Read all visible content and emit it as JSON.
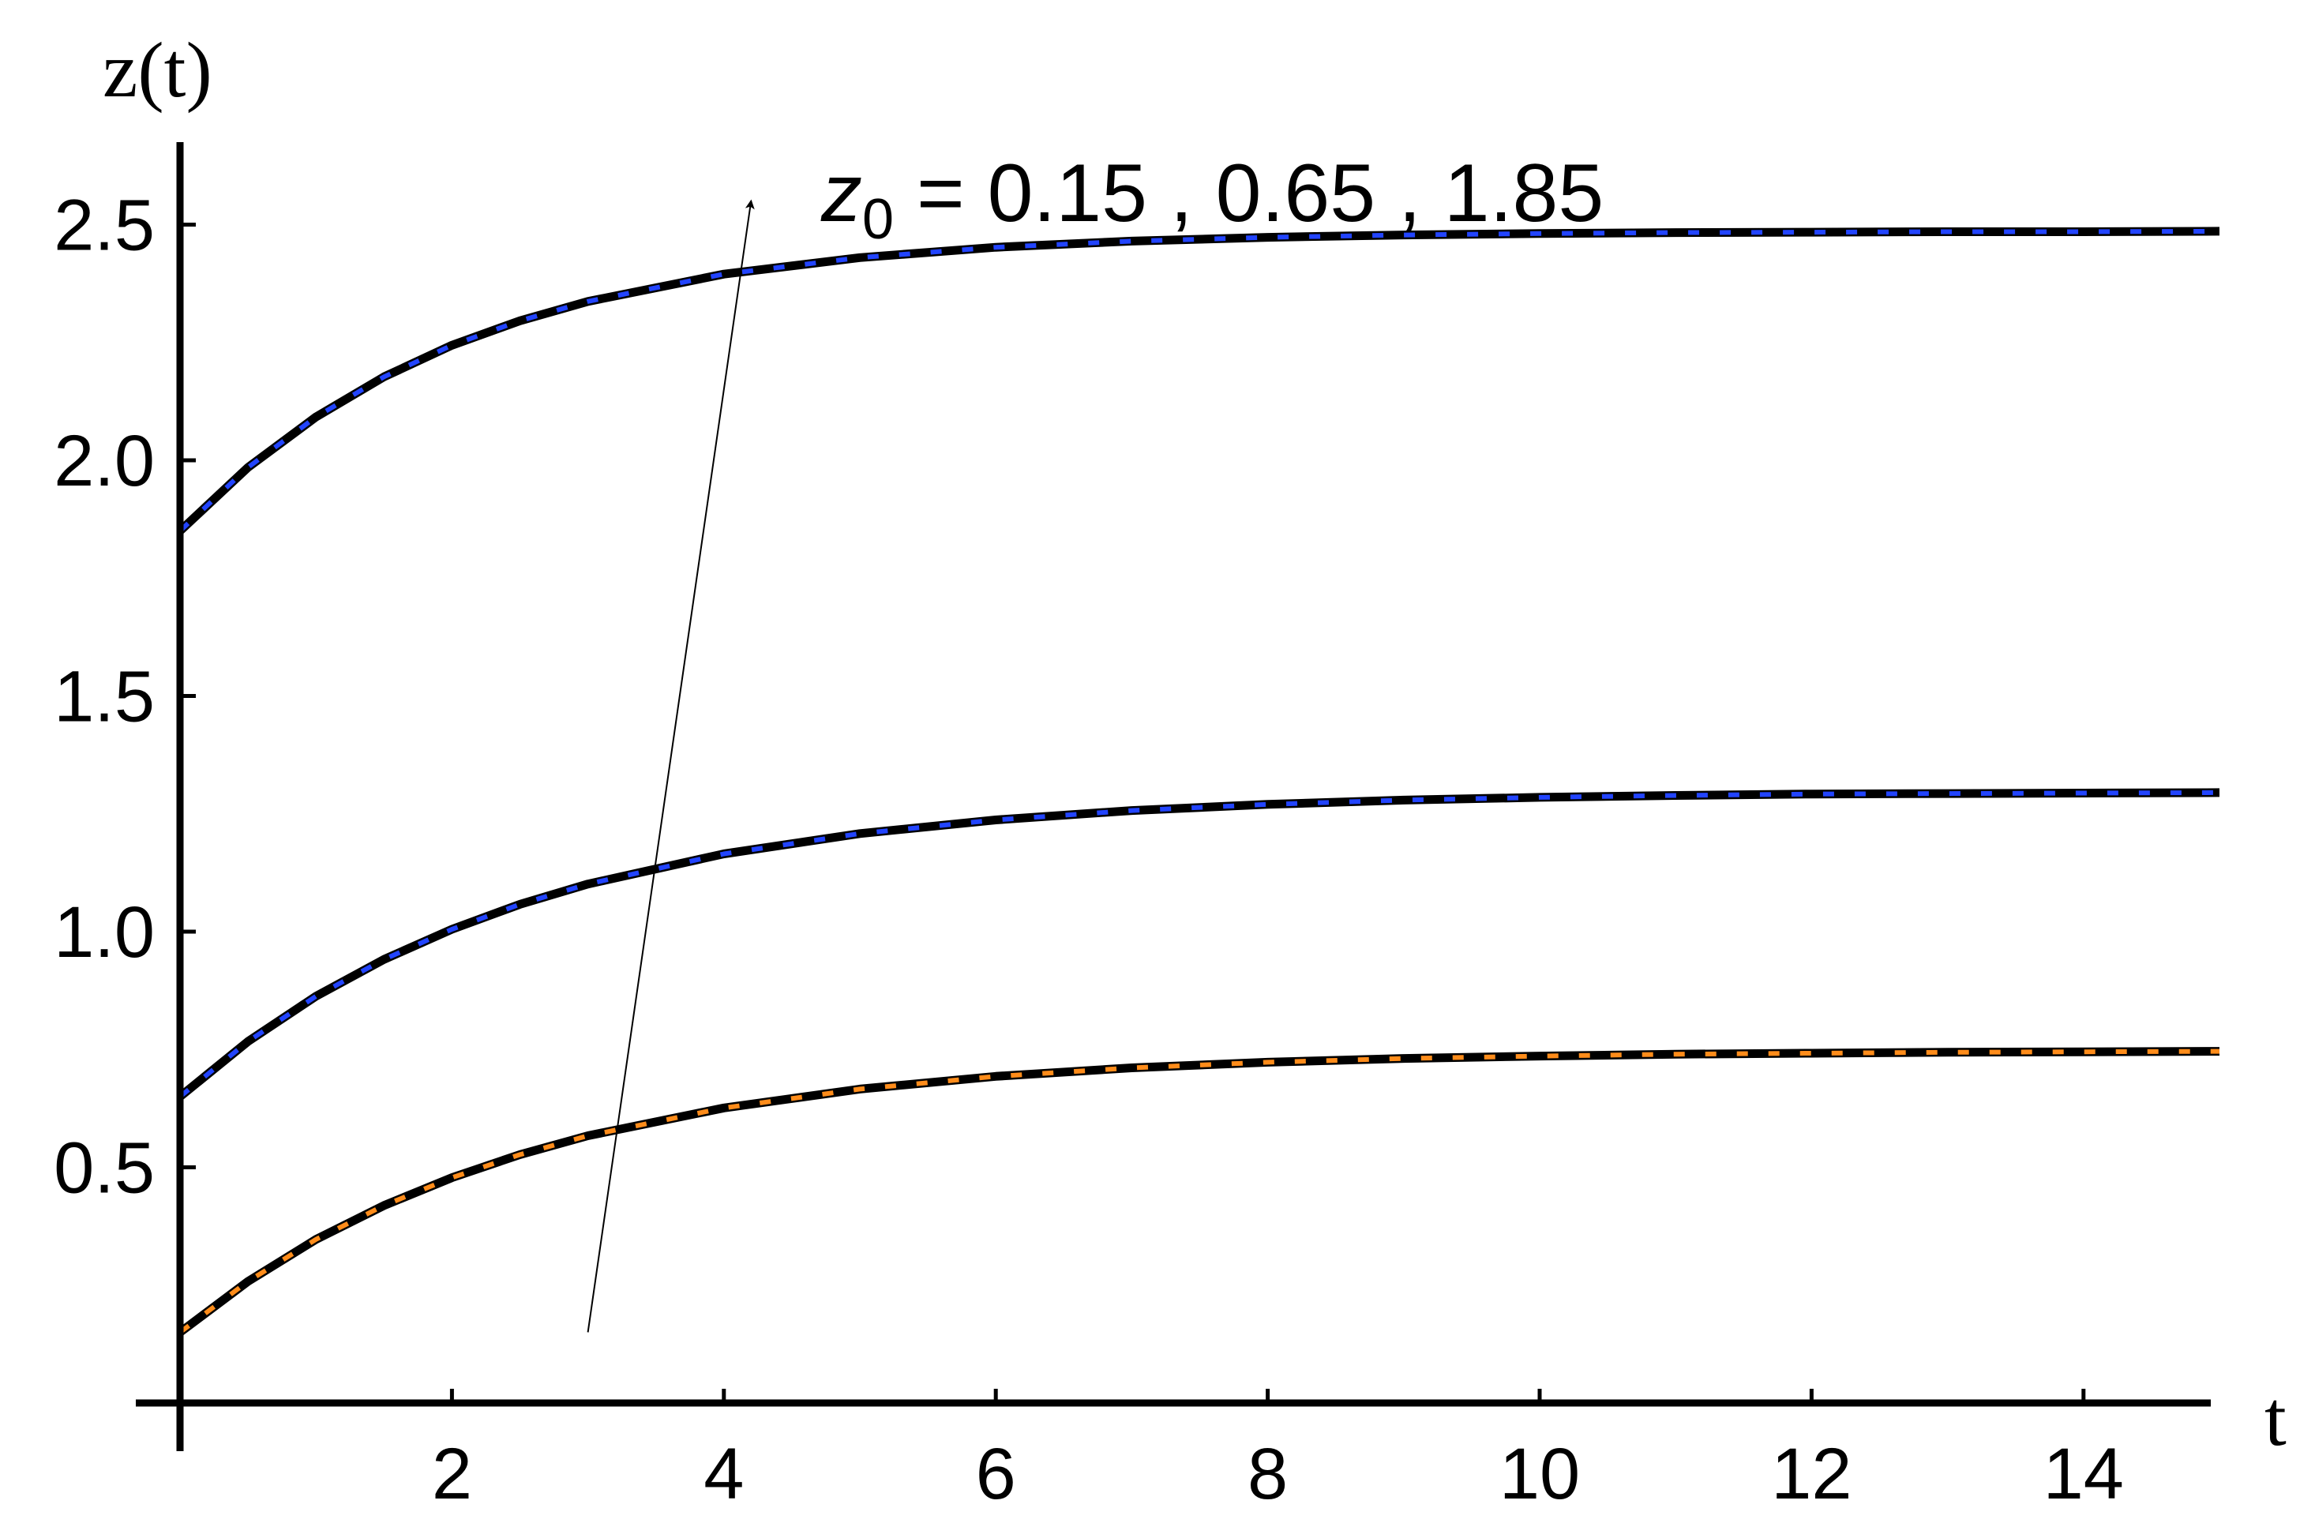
{
  "chart_data": {
    "type": "line",
    "xlabel": "t",
    "ylabel": "z(t)",
    "xlim": [
      0,
      15
    ],
    "ylim": [
      0,
      2.7
    ],
    "xticks": [
      2,
      4,
      6,
      8,
      10,
      12,
      14
    ],
    "yticks": [
      0.5,
      1.0,
      1.5,
      2.0,
      2.5
    ],
    "xtick_labels": [
      "2",
      "4",
      "6",
      "8",
      "10",
      "12",
      "14"
    ],
    "ytick_labels": [
      "0.5",
      "1.0",
      "1.5",
      "2.0",
      "2.5"
    ],
    "grid": false,
    "annotation": {
      "var": "z",
      "sub": "0",
      "text": " = 0.15 , 0.65 , 1.85",
      "arrow_from": [
        3,
        0.15
      ],
      "arrow_to": [
        4.2,
        2.55
      ]
    },
    "series": [
      {
        "z0": 0.15,
        "overlay_color": "#ff8c1a",
        "x": [
          0,
          0.5,
          1,
          1.5,
          2,
          2.5,
          3,
          4,
          5,
          6,
          7,
          8,
          9,
          10,
          11,
          12,
          13,
          14,
          15
        ],
        "y": [
          0.15,
          0.258,
          0.347,
          0.419,
          0.478,
          0.527,
          0.567,
          0.626,
          0.666,
          0.693,
          0.711,
          0.723,
          0.731,
          0.736,
          0.74,
          0.742,
          0.744,
          0.745,
          0.746
        ]
      },
      {
        "z0": 0.65,
        "overlay_color": "#2244ff",
        "x": [
          0,
          0.5,
          1,
          1.5,
          2,
          2.5,
          3,
          4,
          5,
          6,
          7,
          8,
          9,
          10,
          11,
          12,
          13,
          14,
          15
        ],
        "y": [
          0.65,
          0.767,
          0.863,
          0.941,
          1.005,
          1.058,
          1.101,
          1.165,
          1.208,
          1.237,
          1.257,
          1.27,
          1.279,
          1.285,
          1.289,
          1.292,
          1.293,
          1.294,
          1.295
        ]
      },
      {
        "z0": 1.85,
        "overlay_color": "#2244ff",
        "x": [
          0,
          0.5,
          1,
          1.5,
          2,
          2.5,
          3,
          4,
          5,
          6,
          7,
          8,
          9,
          10,
          11,
          12,
          13,
          14,
          15
        ],
        "y": [
          1.85,
          1.985,
          2.092,
          2.177,
          2.244,
          2.296,
          2.337,
          2.395,
          2.43,
          2.452,
          2.465,
          2.473,
          2.478,
          2.481,
          2.483,
          2.484,
          2.485,
          2.485,
          2.486
        ]
      }
    ]
  }
}
